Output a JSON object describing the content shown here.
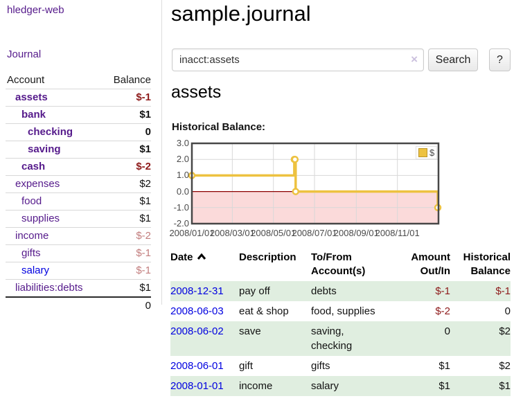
{
  "app": {
    "brand": "hledger-web",
    "nav_journal": "Journal"
  },
  "sidebar": {
    "accounts_header": {
      "account": "Account",
      "balance": "Balance"
    },
    "accounts": [
      {
        "name": "assets",
        "indent": 1,
        "balance": "$-1",
        "emph": true,
        "neg": true,
        "link": "visited"
      },
      {
        "name": "bank",
        "indent": 2,
        "balance": "$1",
        "emph": true,
        "neg": false,
        "link": "visited"
      },
      {
        "name": "checking",
        "indent": 3,
        "balance": "0",
        "emph": true,
        "neg": false,
        "link": "visited"
      },
      {
        "name": "saving",
        "indent": 3,
        "balance": "$1",
        "emph": true,
        "neg": false,
        "link": "visited"
      },
      {
        "name": "cash",
        "indent": 2,
        "balance": "$-2",
        "emph": true,
        "neg": true,
        "link": "visited"
      },
      {
        "name": "expenses",
        "indent": 1,
        "balance": "$2",
        "emph": false,
        "neg": false,
        "link": "visited"
      },
      {
        "name": "food",
        "indent": 2,
        "balance": "$1",
        "emph": false,
        "neg": false,
        "link": "visited"
      },
      {
        "name": "supplies",
        "indent": 2,
        "balance": "$1",
        "emph": false,
        "neg": false,
        "link": "visited"
      },
      {
        "name": "income",
        "indent": 1,
        "balance": "$-2",
        "emph": false,
        "neg": true,
        "link": "visited"
      },
      {
        "name": "gifts",
        "indent": 2,
        "balance": "$-1",
        "emph": false,
        "neg": true,
        "link": "visited"
      },
      {
        "name": "salary",
        "indent": 2,
        "balance": "$-1",
        "emph": false,
        "neg": true,
        "link": "unvisited"
      },
      {
        "name": "liabilities:debts",
        "indent": 1,
        "balance": "$1",
        "emph": false,
        "neg": false,
        "link": "visited"
      }
    ],
    "total": "0"
  },
  "main": {
    "title": "sample.journal",
    "search": {
      "value": "inacct:assets",
      "clear_icon": "×",
      "search_button": "Search",
      "help_button": "?"
    },
    "account_heading": "assets",
    "chart_title": "Historical Balance:"
  },
  "chart_data": {
    "type": "line",
    "step": true,
    "title": "Historical Balance",
    "series": [
      {
        "name": "$",
        "points": [
          [
            "2008-01-01",
            1
          ],
          [
            "2008-06-01",
            2
          ],
          [
            "2008-06-02",
            2
          ],
          [
            "2008-06-03",
            0
          ],
          [
            "2008-12-31",
            -1
          ]
        ]
      }
    ],
    "x_range": [
      "2008-01-01",
      "2009-01-01"
    ],
    "x_ticks": [
      "2008/01/01",
      "2008/03/01",
      "2008/05/01",
      "2008/07/01",
      "2008/09/01",
      "2008/11/01"
    ],
    "y_ticks": [
      "3.0",
      "2.0",
      "1.0",
      "0.0",
      "-1.0",
      "-2.0"
    ],
    "ylim": [
      -2,
      3
    ],
    "grid": true,
    "legend": {
      "label": "$",
      "position": "top-right"
    },
    "negative_region_shaded": true
  },
  "register": {
    "headers": {
      "date": "Date",
      "description": "Description",
      "accounts_line1": "To/From",
      "accounts_line2": "Account(s)",
      "amount_line1": "Amount",
      "amount_line2": "Out/In",
      "balance_line1": "Historical",
      "balance_line2": "Balance"
    },
    "sort": {
      "column": "date",
      "direction": "ascending",
      "icon": "chevron-up-icon"
    },
    "rows": [
      {
        "date": "2008-12-31",
        "description": "pay off",
        "accounts": "debts",
        "amount": "$-1",
        "amount_neg": true,
        "balance": "$-1",
        "balance_neg": true,
        "shaded": true
      },
      {
        "date": "2008-06-03",
        "description": "eat & shop",
        "accounts": "food, supplies",
        "amount": "$-2",
        "amount_neg": true,
        "balance": "0",
        "balance_neg": false,
        "shaded": false
      },
      {
        "date": "2008-06-02",
        "description": "save",
        "accounts": "saving, checking",
        "amount": "0",
        "amount_neg": false,
        "balance": "$2",
        "balance_neg": false,
        "shaded": true
      },
      {
        "date": "2008-06-01",
        "description": "gift",
        "accounts": "gifts",
        "amount": "$1",
        "amount_neg": false,
        "balance": "$2",
        "balance_neg": false,
        "shaded": false
      },
      {
        "date": "2008-01-01",
        "description": "income",
        "accounts": "salary",
        "amount": "$1",
        "amount_neg": false,
        "balance": "$1",
        "balance_neg": false,
        "shaded": true
      }
    ]
  },
  "colors": {
    "link_visited": "#551A8B",
    "link_unvisited": "#0000E0",
    "negative_strong": "#8e1b1b",
    "negative_muted": "#c27d7d",
    "row_shade_green": "#e0eee0",
    "chart_line": "#EDC240",
    "chart_marker_fill": "#ffffff",
    "chart_negative_fill": "#fbdada",
    "chart_zero_line": "#8b0000",
    "chart_grid": "#d8d8d8",
    "chart_border": "#474747"
  }
}
